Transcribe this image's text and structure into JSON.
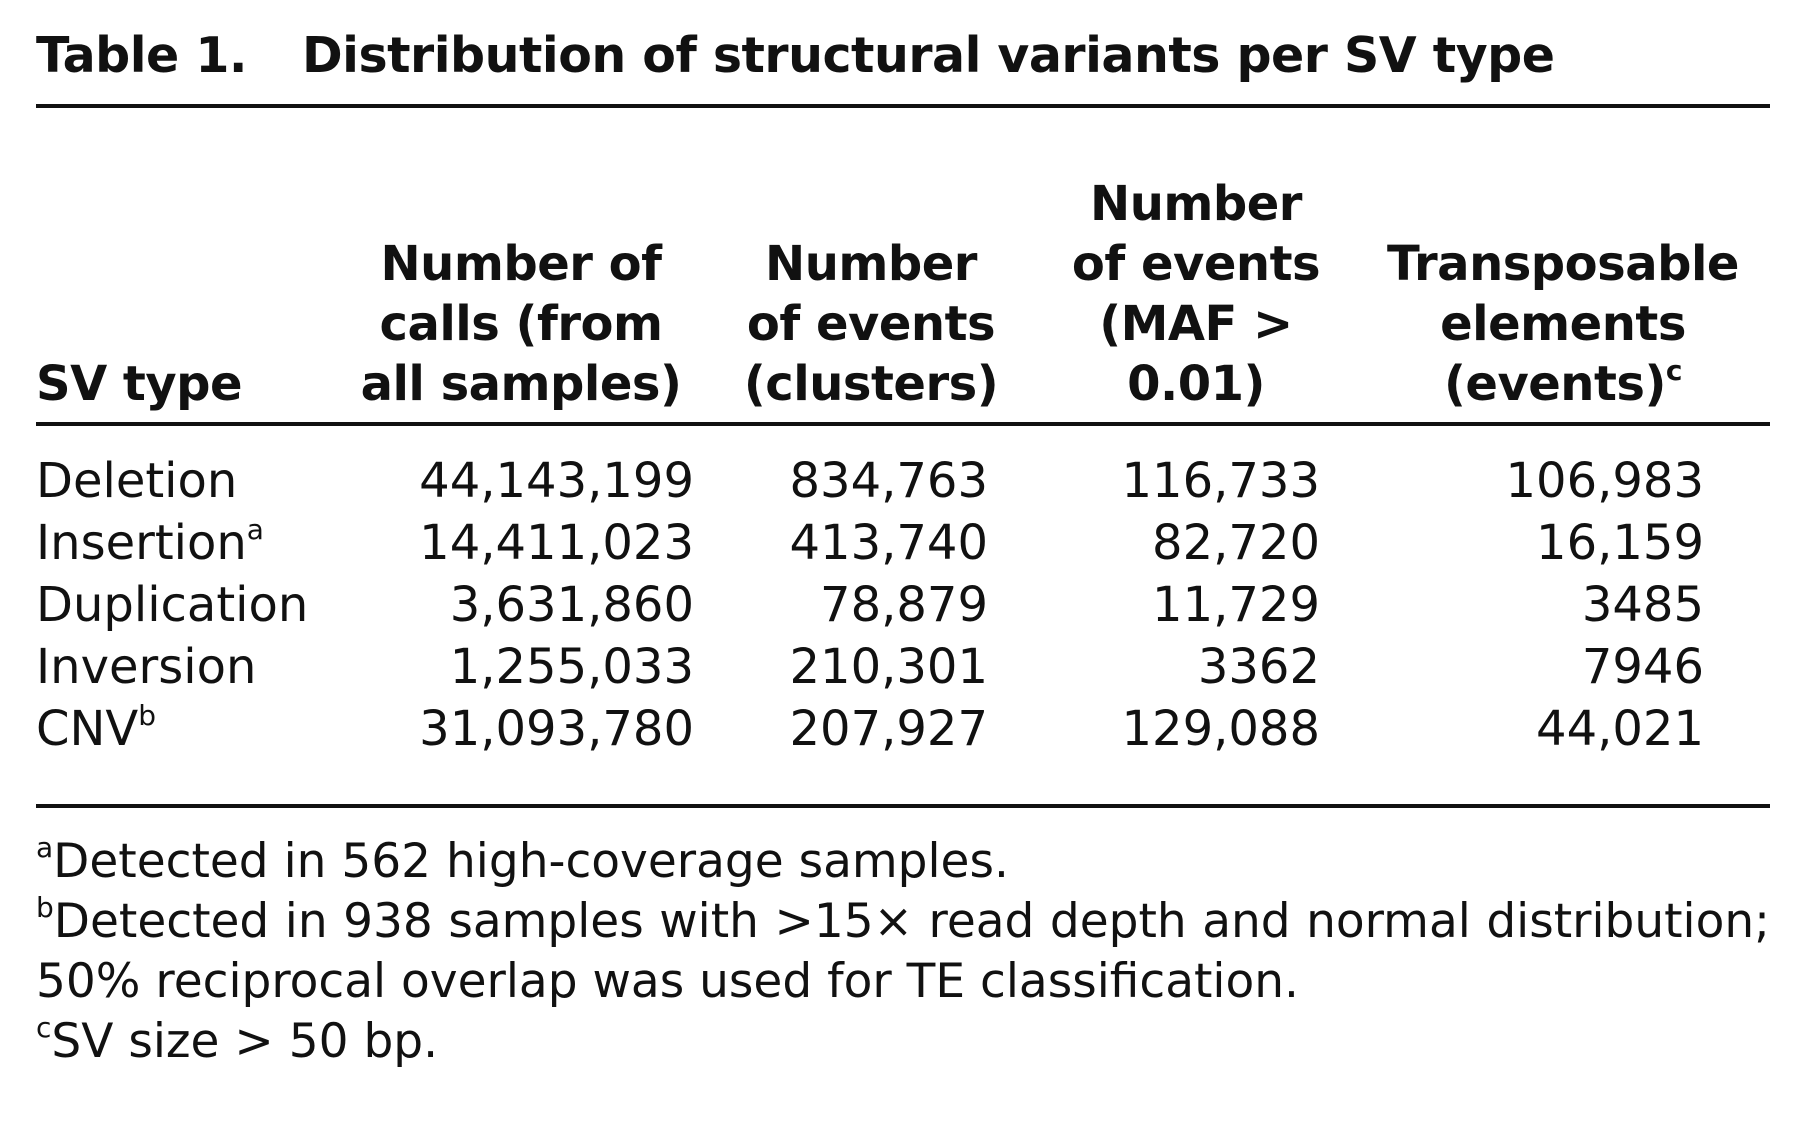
{
  "table": {
    "label": "Table 1.",
    "title": "Distribution of structural variants per SV type",
    "columns": [
      {
        "lines": [
          "SV type"
        ],
        "sup": ""
      },
      {
        "lines": [
          "Number of",
          "calls (from",
          "all samples)"
        ],
        "sup": ""
      },
      {
        "lines": [
          "Number",
          "of events",
          "(clusters)"
        ],
        "sup": ""
      },
      {
        "lines": [
          "Number",
          "of events",
          "(MAF >",
          "0.01)"
        ],
        "sup": ""
      },
      {
        "lines": [
          "Transposable",
          "elements",
          "(events)"
        ],
        "sup": "c"
      }
    ],
    "rows": [
      {
        "type": "Deletion",
        "sup": "",
        "calls": "44,143,199",
        "clusters": "834,763",
        "maf": "116,733",
        "te": "106,983"
      },
      {
        "type": "Insertion",
        "sup": "a",
        "calls": "14,411,023",
        "clusters": "413,740",
        "maf": "82,720",
        "te": "16,159"
      },
      {
        "type": "Duplication",
        "sup": "",
        "calls": "3,631,860",
        "clusters": "78,879",
        "maf": "11,729",
        "te": "3485"
      },
      {
        "type": "Inversion",
        "sup": "",
        "calls": "1,255,033",
        "clusters": "210,301",
        "maf": "3362",
        "te": "7946"
      },
      {
        "type": "CNV",
        "sup": "b",
        "calls": "31,093,780",
        "clusters": "207,927",
        "maf": "129,088",
        "te": "44,021"
      }
    ],
    "footnotes": [
      {
        "mark": "a",
        "text": "Detected in 562 high-coverage samples."
      },
      {
        "mark": "b",
        "text": "Detected in 938 samples with >15× read depth and normal distribution; 50% reciprocal overlap was used for TE classification."
      },
      {
        "mark": "c",
        "text": "SV size > 50 bp."
      }
    ]
  }
}
